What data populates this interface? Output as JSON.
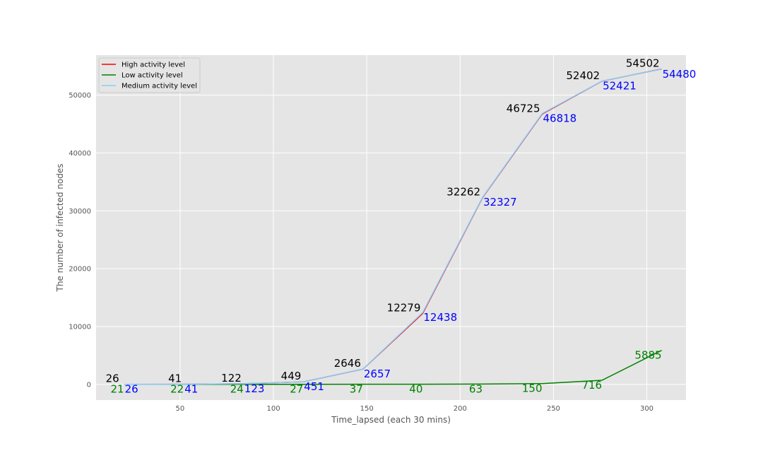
{
  "chart_data": {
    "type": "line",
    "xlabel": "Time_lapsed (each 30 mins)",
    "ylabel": "The number of infected nodes",
    "xlim": [
      5,
      321
    ],
    "ylim": [
      -2700,
      56900
    ],
    "xticks": [
      50,
      100,
      150,
      200,
      250,
      300
    ],
    "yticks": [
      0,
      10000,
      20000,
      30000,
      40000,
      50000
    ],
    "grid": true,
    "legend_position": "top-left",
    "series": [
      {
        "name": "High activity level",
        "color": "#ff0000",
        "x": [
          20,
          52,
          84,
          116,
          148,
          180,
          212,
          244,
          276,
          308
        ],
        "y": [
          26,
          41,
          122,
          449,
          2646,
          12279,
          32262,
          46725,
          52402,
          54502
        ],
        "labels": [
          "26",
          "41",
          "122",
          "449",
          "2646",
          "12279",
          "32262",
          "46725",
          "52402",
          "54502"
        ],
        "label_color": "#000000"
      },
      {
        "name": "Low activity level",
        "color": "#008000",
        "x": [
          20,
          52,
          84,
          116,
          148,
          180,
          212,
          244,
          276,
          308
        ],
        "y": [
          21,
          22,
          24,
          27,
          37,
          40,
          63,
          150,
          716,
          5885
        ],
        "labels": [
          "21",
          "22",
          "24",
          "27",
          "37",
          "40",
          "63",
          "150",
          "716",
          "5885"
        ],
        "label_color": "#008000"
      },
      {
        "name": "Medium activity level",
        "color": "#87cefa",
        "x": [
          20,
          52,
          84,
          116,
          148,
          180,
          212,
          244,
          276,
          308
        ],
        "y": [
          26,
          41,
          123,
          451,
          2657,
          12438,
          32327,
          46818,
          52421,
          54480
        ],
        "labels": [
          "26",
          "41",
          "123",
          "451",
          "2657",
          "12438",
          "32327",
          "46818",
          "52421",
          "54480"
        ],
        "label_color": "#0000ff"
      }
    ]
  }
}
